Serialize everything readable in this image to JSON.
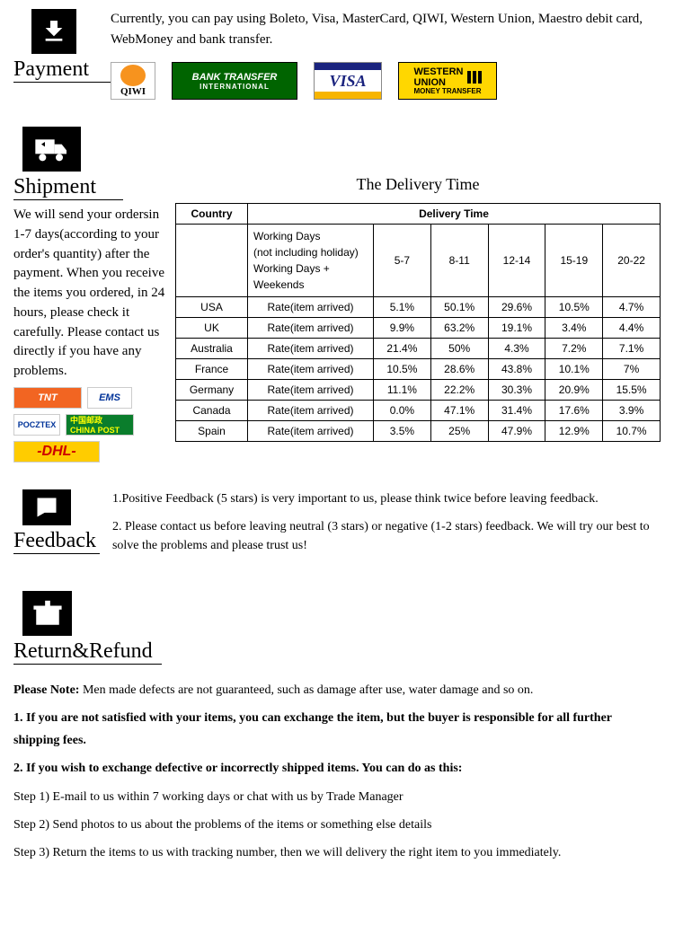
{
  "payment": {
    "heading": "Payment",
    "text": "Currently, you can pay using Boleto, Visa, MasterCard, QIWI, Western Union, Maestro  debit card, WebMoney and bank transfer.",
    "badges": {
      "qiwi": "QIWI",
      "bt_main": "BANK TRANSFER",
      "bt_sub": "INTERNATIONAL",
      "visa": "VISA",
      "wu_top": "WESTERN",
      "wu_mid": "UNION",
      "wu_sub": "MONEY TRANSFER"
    }
  },
  "shipment": {
    "heading": "Shipment",
    "title": "The Delivery Time",
    "text": "We will send your ordersin 1-7 days(according to your order's quantity) after the payment. When you receive  the items you ordered, in 24  hours, please check it carefully. Please  contact us directly if you have any problems.",
    "carriers": {
      "tnt": "TNT",
      "ems": "EMS",
      "pocztex": "POCZTEX",
      "china": "中国邮政 CHINA POST",
      "dhl": "-DHL-"
    },
    "table": {
      "country_h": "Country",
      "delivery_h": "Delivery Time",
      "wd1": "Working Days",
      "wd2": "(not including holiday)",
      "wd3": "Working Days + Weekends",
      "ranges": [
        "5-7",
        "8-11",
        "12-14",
        "15-19",
        "20-22"
      ],
      "rate_label": "Rate(item arrived)",
      "rows": [
        {
          "country": "USA",
          "vals": [
            "5.1%",
            "50.1%",
            "29.6%",
            "10.5%",
            "4.7%"
          ]
        },
        {
          "country": "UK",
          "vals": [
            "9.9%",
            "63.2%",
            "19.1%",
            "3.4%",
            "4.4%"
          ]
        },
        {
          "country": "Australia",
          "vals": [
            "21.4%",
            "50%",
            "4.3%",
            "7.2%",
            "7.1%"
          ]
        },
        {
          "country": "France",
          "vals": [
            "10.5%",
            "28.6%",
            "43.8%",
            "10.1%",
            "7%"
          ]
        },
        {
          "country": "Germany",
          "vals": [
            "11.1%",
            "22.2%",
            "30.3%",
            "20.9%",
            "15.5%"
          ]
        },
        {
          "country": "Canada",
          "vals": [
            "0.0%",
            "47.1%",
            "31.4%",
            "17.6%",
            "3.9%"
          ]
        },
        {
          "country": "Spain",
          "vals": [
            "3.5%",
            "25%",
            "47.9%",
            "12.9%",
            "10.7%"
          ]
        }
      ]
    }
  },
  "feedback": {
    "heading": "Feedback",
    "line1": "1.Positive Feedback (5 stars) is very important to us, please think twice before leaving feedback.",
    "line2": "2. Please contact us before leaving neutral (3 stars) or negative  (1-2 stars) feedback. We will try our best to solve the problems and please trust us!"
  },
  "return": {
    "heading": "Return&Refund",
    "note_label": "Please Note:",
    "note_text": " Men made defects are not guaranteed, such as damage after use, water damage and so on.",
    "p1": "1. If you are not satisfied with your items, you can exchange the item, but the buyer is responsible for all further shipping fees.",
    "p2": "2. If you wish to exchange defective or incorrectly shipped items. You can do as this:",
    "s1": " Step 1) E-mail to us within 7 working days or chat with us by Trade Manager",
    "s2": " Step 2) Send photos to us about the problems of the items or something else details",
    "s3": " Step 3) Return the items to us with tracking number, then we will delivery the right item to you immediately."
  }
}
